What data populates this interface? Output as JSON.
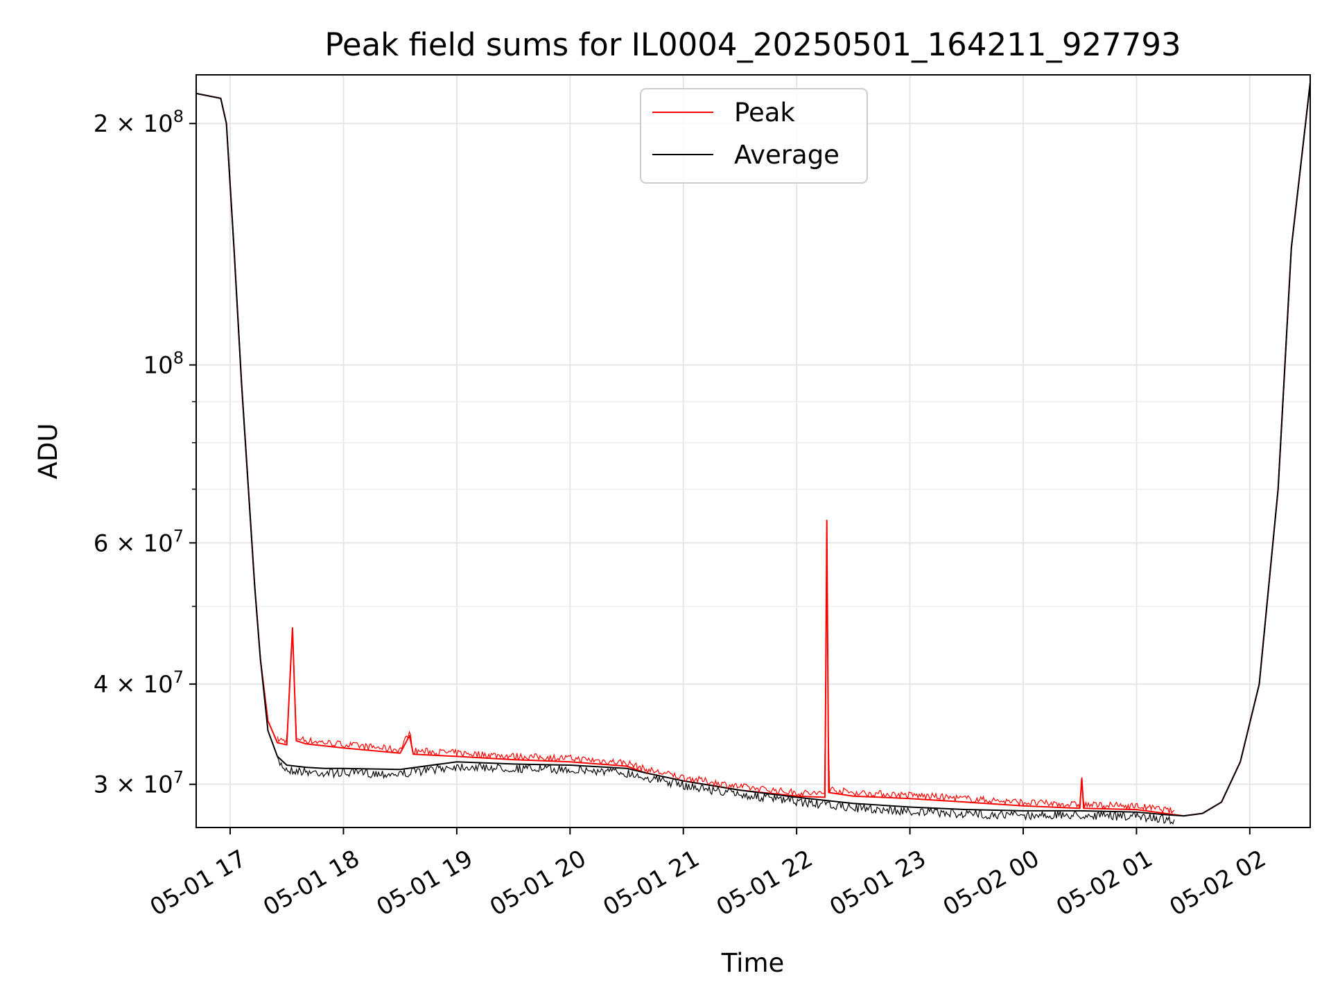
{
  "chart_data": {
    "type": "line",
    "title": "Peak field sums for IL0004_20250501_164211_927793",
    "xlabel": "Time",
    "ylabel": "ADU",
    "yscale": "log",
    "grid": true,
    "legend_position": "top-center",
    "xlim": [
      "2025-05-01 16:42",
      "2025-05-02 02:32"
    ],
    "ylim": [
      26500000,
      230000000
    ],
    "x_ticks": [
      {
        "value": "2025-05-01 17:00",
        "label": "05-01 17"
      },
      {
        "value": "2025-05-01 18:00",
        "label": "05-01 18"
      },
      {
        "value": "2025-05-01 19:00",
        "label": "05-01 19"
      },
      {
        "value": "2025-05-01 20:00",
        "label": "05-01 20"
      },
      {
        "value": "2025-05-01 21:00",
        "label": "05-01 21"
      },
      {
        "value": "2025-05-01 22:00",
        "label": "05-01 22"
      },
      {
        "value": "2025-05-01 23:00",
        "label": "05-01 23"
      },
      {
        "value": "2025-05-02 00:00",
        "label": "05-02 00"
      },
      {
        "value": "2025-05-02 01:00",
        "label": "05-02 01"
      },
      {
        "value": "2025-05-02 02:00",
        "label": "05-02 02"
      }
    ],
    "y_ticks": [
      {
        "value": 30000000,
        "mantissa": "3",
        "exponent": "7"
      },
      {
        "value": 40000000,
        "mantissa": "4",
        "exponent": "7"
      },
      {
        "value": 60000000,
        "mantissa": "6",
        "exponent": "7"
      },
      {
        "value": 100000000,
        "mantissa": "",
        "exponent": "8"
      },
      {
        "value": 200000000,
        "mantissa": "2",
        "exponent": "8"
      }
    ],
    "y_minor_ticks": [
      50000000,
      70000000,
      80000000,
      90000000
    ],
    "series": [
      {
        "name": "Peak",
        "color": "#ff0000",
        "x": [
          "2025-05-01 16:42",
          "2025-05-01 16:55",
          "2025-05-01 16:58",
          "2025-05-01 17:02",
          "2025-05-01 17:06",
          "2025-05-01 17:10",
          "2025-05-01 17:13",
          "2025-05-01 17:16",
          "2025-05-01 17:20",
          "2025-05-01 17:25",
          "2025-05-01 17:30",
          "2025-05-01 17:33",
          "2025-05-01 17:35",
          "2025-05-01 17:40",
          "2025-05-01 17:50",
          "2025-05-01 18:00",
          "2025-05-01 18:30",
          "2025-05-01 18:35",
          "2025-05-01 18:37",
          "2025-05-01 19:00",
          "2025-05-01 19:30",
          "2025-05-01 20:00",
          "2025-05-01 20:30",
          "2025-05-01 20:40",
          "2025-05-01 21:00",
          "2025-05-01 21:30",
          "2025-05-01 22:00",
          "2025-05-01 22:15",
          "2025-05-01 22:16",
          "2025-05-01 22:17",
          "2025-05-01 22:30",
          "2025-05-01 23:00",
          "2025-05-01 23:30",
          "2025-05-02 00:00",
          "2025-05-02 00:30",
          "2025-05-02 00:31",
          "2025-05-02 00:32",
          "2025-05-02 01:00",
          "2025-05-02 01:15",
          "2025-05-02 01:25",
          "2025-05-02 01:35",
          "2025-05-02 01:45",
          "2025-05-02 01:55",
          "2025-05-02 02:05",
          "2025-05-02 02:15",
          "2025-05-02 02:22",
          "2025-05-02 02:32"
        ],
        "y": [
          218000000,
          215000000,
          200000000,
          140000000,
          95000000,
          68000000,
          53000000,
          43000000,
          36000000,
          33800000,
          33600000,
          47000000,
          34000000,
          33700000,
          33500000,
          33300000,
          32800000,
          34500000,
          32700000,
          32500000,
          32200000,
          32000000,
          31600000,
          31000000,
          30300000,
          29500000,
          29000000,
          28900000,
          64000000,
          29300000,
          29000000,
          28800000,
          28500000,
          28200000,
          28000000,
          30500000,
          28000000,
          27900000,
          27600000,
          27400000,
          27600000,
          28500000,
          32000000,
          40000000,
          70000000,
          140000000,
          225000000
        ]
      },
      {
        "name": "Average",
        "color": "#000000",
        "x": [
          "2025-05-01 16:42",
          "2025-05-01 16:55",
          "2025-05-01 16:58",
          "2025-05-01 17:02",
          "2025-05-01 17:06",
          "2025-05-01 17:10",
          "2025-05-01 17:13",
          "2025-05-01 17:16",
          "2025-05-01 17:20",
          "2025-05-01 17:25",
          "2025-05-01 17:30",
          "2025-05-01 17:40",
          "2025-05-01 17:50",
          "2025-05-01 18:00",
          "2025-05-01 18:30",
          "2025-05-01 19:00",
          "2025-05-01 19:30",
          "2025-05-01 20:00",
          "2025-05-01 20:30",
          "2025-05-01 20:40",
          "2025-05-01 21:00",
          "2025-05-01 21:30",
          "2025-05-01 22:00",
          "2025-05-01 22:30",
          "2025-05-01 23:00",
          "2025-05-01 23:30",
          "2025-05-02 00:00",
          "2025-05-02 00:30",
          "2025-05-02 01:00",
          "2025-05-02 01:15",
          "2025-05-02 01:25",
          "2025-05-02 01:35",
          "2025-05-02 01:45",
          "2025-05-02 01:55",
          "2025-05-02 02:05",
          "2025-05-02 02:15",
          "2025-05-02 02:22",
          "2025-05-02 02:32"
        ],
        "y": [
          218000000,
          215000000,
          200000000,
          140000000,
          95000000,
          68000000,
          53000000,
          43000000,
          35000000,
          32500000,
          31700000,
          31500000,
          31400000,
          31400000,
          31300000,
          32000000,
          31800000,
          31700000,
          31400000,
          31000000,
          30300000,
          29500000,
          28900000,
          28400000,
          28100000,
          27900000,
          27800000,
          27800000,
          27700000,
          27500000,
          27400000,
          27600000,
          28500000,
          32000000,
          40000000,
          70000000,
          140000000,
          225000000
        ]
      }
    ]
  }
}
